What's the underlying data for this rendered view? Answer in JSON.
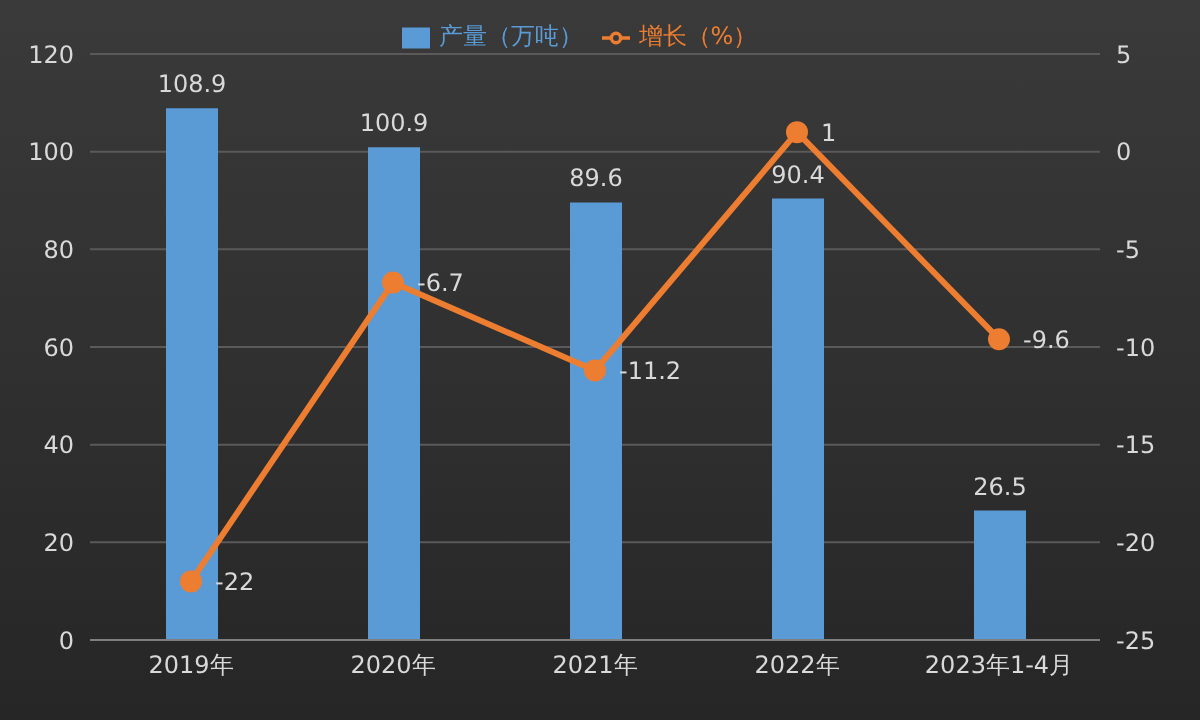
{
  "chart_data": {
    "type": "bar",
    "categories": [
      "2019年",
      "2020年",
      "2021年",
      "2022年",
      "2023年1-4月"
    ],
    "series": [
      {
        "name": "产量（万吨）",
        "color": "#5b9bd5",
        "values": [
          108.9,
          100.9,
          89.6,
          90.4,
          26.5
        ]
      },
      {
        "name": "增长（%）",
        "type": "line",
        "axis": "y2",
        "color": "#ed7d31",
        "values": [
          -22,
          -6.7,
          -11.2,
          1,
          -9.6
        ]
      }
    ],
    "ylim": [
      0,
      120
    ],
    "yticks": [
      0,
      20,
      40,
      60,
      80,
      100,
      120
    ],
    "y2lim": [
      -25,
      5
    ],
    "y2ticks": [
      -25,
      -20,
      -15,
      -10,
      -5,
      0,
      5
    ],
    "grid": "y",
    "legend": "top",
    "marker": "circle",
    "line_style": "solid",
    "data_labels": true
  }
}
